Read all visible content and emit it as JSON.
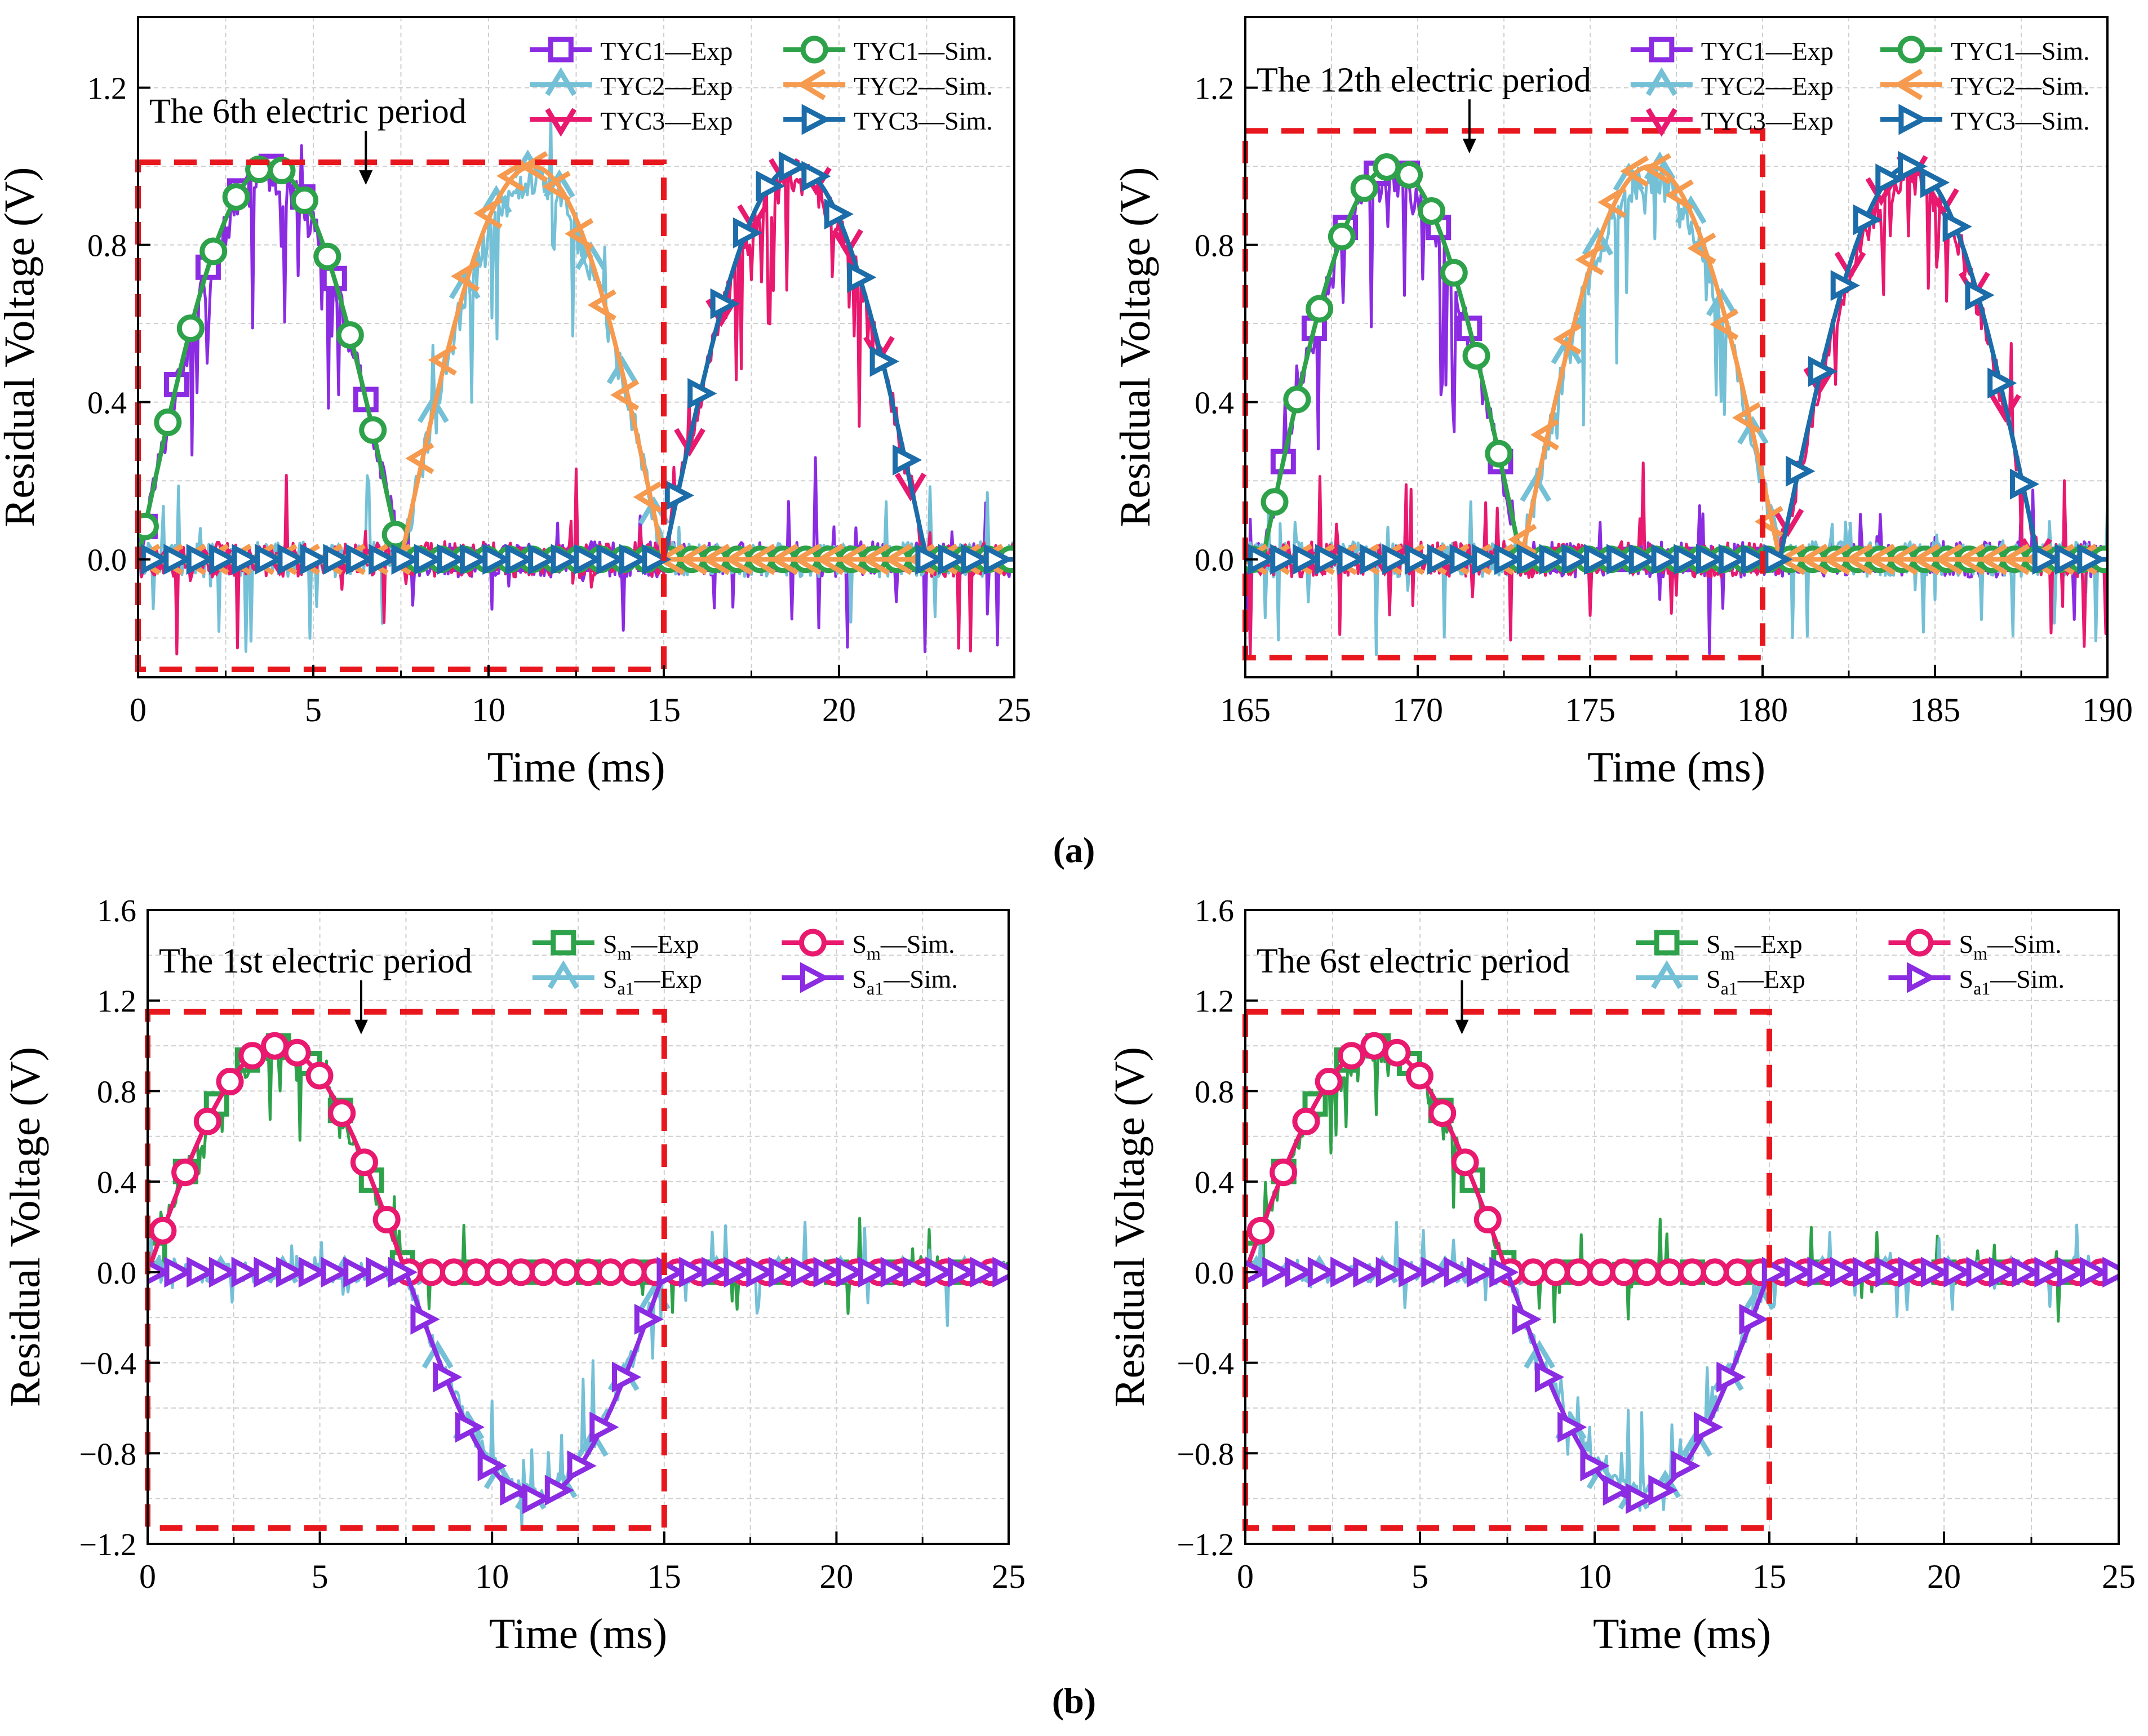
{
  "figure": {
    "label_a": "(a)",
    "label_b": "(b)"
  },
  "chart_data": [
    {
      "id": "a_left",
      "type": "line",
      "title": "",
      "xlabel": "Time (ms)",
      "ylabel": "Residual Voltage (V)",
      "xlim": [
        0,
        25
      ],
      "ylim": [
        -0.3,
        1.38
      ],
      "xticks": [
        0,
        5,
        10,
        15,
        20,
        25
      ],
      "yticks": [
        0.0,
        0.4,
        0.8,
        1.2
      ],
      "ytick_labels": [
        "0.0",
        "0.4",
        "0.8",
        "1.2"
      ],
      "grid": true,
      "legend_position": "top-right",
      "annotation": "The 6th electric period",
      "annotation_arrow_x": 6.5,
      "period_box": {
        "x": [
          0,
          15
        ],
        "y": [
          -0.28,
          1.01
        ]
      },
      "series": [
        {
          "name": "TYC1—Exp",
          "label": "TYC1—Exp",
          "color": "#8B2BE2",
          "marker": "square",
          "kind": "exp",
          "phase": 0,
          "pol": 1
        },
        {
          "name": "TYC2—Exp",
          "label": "TYC2—Exp",
          "color": "#74C0D6",
          "marker": "tri",
          "kind": "exp",
          "phase": 7.5,
          "pol": 1
        },
        {
          "name": "TYC3—Exp",
          "label": "TYC3—Exp",
          "color": "#E8196E",
          "marker": "tridown",
          "kind": "exp",
          "phase": 15,
          "pol": 1
        },
        {
          "name": "TYC1—Sim.",
          "label": "TYC1—Sim.",
          "color": "#2EA24A",
          "marker": "circle",
          "kind": "sim",
          "phase": 0,
          "pol": 1
        },
        {
          "name": "TYC2—Sim.",
          "label": "TYC2—Sim.",
          "color": "#F59A4E",
          "marker": "trileft",
          "kind": "sim",
          "phase": 7.5,
          "pol": 1
        },
        {
          "name": "TYC3—Sim.",
          "label": "TYC3—Sim.",
          "color": "#1B6CA8",
          "marker": "triright",
          "kind": "sim",
          "phase": 15,
          "pol": 1
        }
      ]
    },
    {
      "id": "a_right",
      "type": "line",
      "title": "",
      "xlabel": "Time (ms)",
      "ylabel": "Residual Voltage (V)",
      "xlim": [
        165,
        190
      ],
      "ylim": [
        -0.3,
        1.38
      ],
      "xticks": [
        165,
        170,
        175,
        180,
        185,
        190
      ],
      "yticks": [
        0.0,
        0.4,
        0.8,
        1.2
      ],
      "ytick_labels": [
        "0.0",
        "0.4",
        "0.8",
        "1.2"
      ],
      "grid": true,
      "legend_position": "top-right",
      "annotation": "The 12th electric period",
      "annotation_arrow_x": 171.5,
      "period_box": {
        "x": [
          165,
          180
        ],
        "y": [
          -0.25,
          1.09
        ]
      },
      "series": [
        {
          "name": "TYC1—Exp",
          "label": "TYC1—Exp",
          "color": "#8B2BE2",
          "marker": "square",
          "kind": "exp",
          "phase": 165.5,
          "pol": 1
        },
        {
          "name": "TYC2—Exp",
          "label": "TYC2—Exp",
          "color": "#74C0D6",
          "marker": "tri",
          "kind": "exp",
          "phase": 173,
          "pol": 1
        },
        {
          "name": "TYC3—Exp",
          "label": "TYC3—Exp",
          "color": "#E8196E",
          "marker": "tridown",
          "kind": "exp",
          "phase": 180.5,
          "pol": 1
        },
        {
          "name": "TYC1—Sim.",
          "label": "TYC1—Sim.",
          "color": "#2EA24A",
          "marker": "circle",
          "kind": "sim",
          "phase": 165.5,
          "pol": 1
        },
        {
          "name": "TYC2—Sim.",
          "label": "TYC2—Sim.",
          "color": "#F59A4E",
          "marker": "trileft",
          "kind": "sim",
          "phase": 173,
          "pol": 1
        },
        {
          "name": "TYC3—Sim.",
          "label": "TYC3—Sim.",
          "color": "#1B6CA8",
          "marker": "triright",
          "kind": "sim",
          "phase": 180.5,
          "pol": 1
        }
      ]
    },
    {
      "id": "b_left",
      "type": "line",
      "title": "",
      "xlabel": "Time (ms)",
      "ylabel": "Residual Voltage (V)",
      "xlim": [
        0,
        25
      ],
      "ylim": [
        -1.2,
        1.6
      ],
      "xticks": [
        0,
        5,
        10,
        15,
        20,
        25
      ],
      "yticks": [
        -1.2,
        -0.8,
        -0.4,
        0.0,
        0.4,
        0.8,
        1.2,
        1.6
      ],
      "ytick_labels": [
        "−1.2",
        "−0.8",
        "−0.4",
        "0.0",
        "0.4",
        "0.8",
        "1.2",
        "1.6"
      ],
      "grid": true,
      "legend_position": "top-right",
      "annotation": "The 1st electric period",
      "annotation_arrow_x": 6.2,
      "period_box": {
        "x": [
          0,
          15
        ],
        "y": [
          -1.13,
          1.15
        ]
      },
      "series": [
        {
          "name": "Sm—Exp",
          "label": "—Exp",
          "sub": "m",
          "color": "#2EA24A",
          "marker": "square",
          "kind": "exp",
          "phase": 0,
          "pol": 1
        },
        {
          "name": "Sa1—Exp",
          "label": "—Exp",
          "sub": "a1",
          "color": "#74C0D6",
          "marker": "tri",
          "kind": "exp",
          "phase": 7.5,
          "pol": -1
        },
        {
          "name": "Sm—Sim.",
          "label": "—Sim.",
          "sub": "m",
          "color": "#E8196E",
          "marker": "circle",
          "kind": "sim",
          "phase": 0,
          "pol": 1
        },
        {
          "name": "Sa1—Sim.",
          "label": "—Sim.",
          "sub": "a1",
          "color": "#8B2BE2",
          "marker": "triright",
          "kind": "sim",
          "phase": 7.5,
          "pol": -1
        }
      ]
    },
    {
      "id": "b_right",
      "type": "line",
      "title": "",
      "xlabel": "Time (ms)",
      "ylabel": "Residual Voltage (V)",
      "xlim": [
        0,
        25
      ],
      "ylim": [
        -1.2,
        1.6
      ],
      "xticks": [
        0,
        5,
        10,
        15,
        20,
        25
      ],
      "yticks": [
        -1.2,
        -0.8,
        -0.4,
        0.0,
        0.4,
        0.8,
        1.2,
        1.6
      ],
      "ytick_labels": [
        "−1.2",
        "−0.8",
        "−0.4",
        "0.0",
        "0.4",
        "0.8",
        "1.2",
        "1.6"
      ],
      "grid": true,
      "legend_position": "top-right",
      "annotation": "The 6st electric period",
      "annotation_arrow_x": 6.2,
      "period_box": {
        "x": [
          0,
          15
        ],
        "y": [
          -1.13,
          1.15
        ]
      },
      "series": [
        {
          "name": "Sm—Exp",
          "label": "—Exp",
          "sub": "m",
          "color": "#2EA24A",
          "marker": "square",
          "kind": "exp",
          "phase": 0,
          "pol": 1
        },
        {
          "name": "Sa1—Exp",
          "label": "—Exp",
          "sub": "a1",
          "color": "#74C0D6",
          "marker": "tri",
          "kind": "exp",
          "phase": 7.5,
          "pol": -1
        },
        {
          "name": "Sm—Sim.",
          "label": "—Sim.",
          "sub": "m",
          "color": "#E8196E",
          "marker": "circle",
          "kind": "sim",
          "phase": 0,
          "pol": 1
        },
        {
          "name": "Sa1—Sim.",
          "label": "—Sim.",
          "sub": "a1",
          "color": "#8B2BE2",
          "marker": "triright",
          "kind": "sim",
          "phase": 7.5,
          "pol": -1
        }
      ]
    }
  ]
}
